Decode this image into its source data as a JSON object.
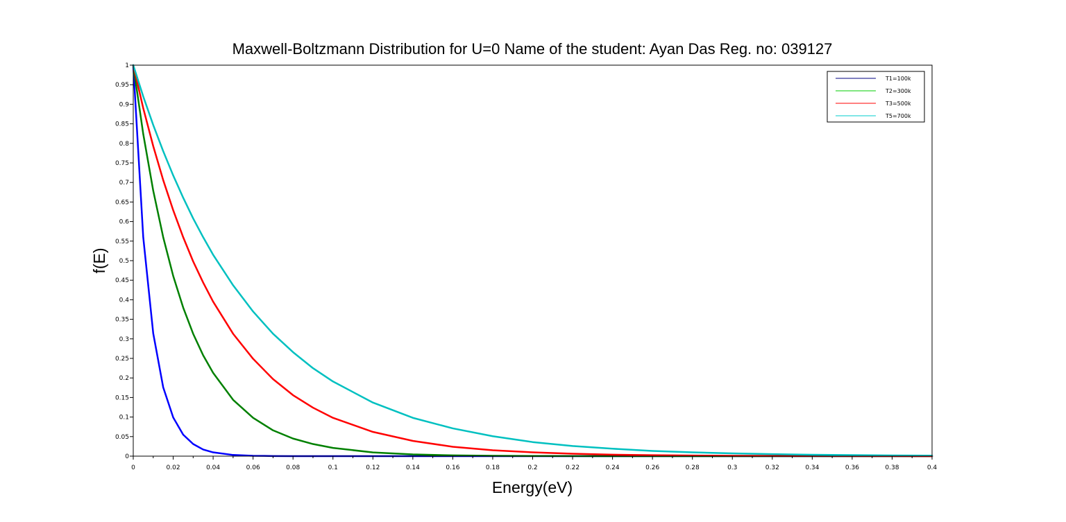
{
  "chart_data": {
    "type": "line",
    "title": "Maxwell-Boltzmann Distribution for U=0 Name of the student: Ayan Das  Reg. no: 039127",
    "xlabel": "Energy(eV)",
    "ylabel": "f(E)",
    "xlim": [
      0,
      0.4
    ],
    "ylim": [
      0,
      1
    ],
    "x_ticks": [
      "0",
      "0.02",
      "0.04",
      "0.06",
      "0.08",
      "0.1",
      "0.12",
      "0.14",
      "0.16",
      "0.18",
      "0.2",
      "0.22",
      "0.24",
      "0.26",
      "0.28",
      "0.3",
      "0.32",
      "0.34",
      "0.36",
      "0.38",
      "0.4"
    ],
    "y_ticks": [
      "0",
      "0.05",
      "0.1",
      "0.15",
      "0.2",
      "0.25",
      "0.3",
      "0.35",
      "0.4",
      "0.45",
      "0.5",
      "0.55",
      "0.6",
      "0.65",
      "0.7",
      "0.75",
      "0.8",
      "0.85",
      "0.9",
      "0.95",
      "1"
    ],
    "grid": false,
    "legend_position": "top-right",
    "x": [
      0,
      0.005,
      0.01,
      0.015,
      0.02,
      0.025,
      0.03,
      0.035,
      0.04,
      0.05,
      0.06,
      0.07,
      0.08,
      0.09,
      0.1,
      0.12,
      0.14,
      0.16,
      0.18,
      0.2,
      0.22,
      0.24,
      0.26,
      0.28,
      0.3,
      0.32,
      0.34,
      0.36,
      0.38,
      0.4
    ],
    "series": [
      {
        "name": "T1=100k",
        "legend_color": "#000080",
        "line_color": "#0000ff",
        "values": [
          1,
          0.56,
          0.314,
          0.176,
          0.099,
          0.055,
          0.031,
          0.017,
          0.0097,
          0.003,
          0.001,
          0.0003,
          0.0001,
          0,
          0,
          0,
          0,
          0,
          0,
          0,
          0,
          0,
          0,
          0,
          0,
          0,
          0,
          0,
          0,
          0
        ]
      },
      {
        "name": "T2=300k",
        "legend_color": "#00cc00",
        "line_color": "#008000",
        "values": [
          1,
          0.824,
          0.679,
          0.56,
          0.461,
          0.38,
          0.313,
          0.258,
          0.213,
          0.144,
          0.098,
          0.066,
          0.045,
          0.031,
          0.021,
          0.0096,
          0.0044,
          0.002,
          0.0009,
          0.0004,
          0.0002,
          0.0001,
          0,
          0,
          0,
          0,
          0,
          0,
          0,
          0
        ]
      },
      {
        "name": "T3=500k",
        "legend_color": "#ff0000",
        "line_color": "#ff0000",
        "values": [
          1,
          0.89,
          0.793,
          0.706,
          0.629,
          0.56,
          0.498,
          0.444,
          0.395,
          0.313,
          0.249,
          0.197,
          0.156,
          0.124,
          0.098,
          0.062,
          0.039,
          0.024,
          0.015,
          0.0097,
          0.0061,
          0.0038,
          0.0024,
          0.0015,
          0.00095,
          0.0006,
          0.00037,
          0.00023,
          0.00015,
          0.0001
        ]
      },
      {
        "name": "T5=700k",
        "legend_color": "#00cccc",
        "line_color": "#00c0c0",
        "values": [
          1,
          0.92,
          0.847,
          0.78,
          0.718,
          0.661,
          0.608,
          0.56,
          0.515,
          0.437,
          0.37,
          0.313,
          0.266,
          0.225,
          0.191,
          0.137,
          0.098,
          0.071,
          0.051,
          0.036,
          0.026,
          0.019,
          0.0134,
          0.0097,
          0.007,
          0.005,
          0.0036,
          0.0026,
          0.0018,
          0.0013
        ]
      }
    ]
  }
}
